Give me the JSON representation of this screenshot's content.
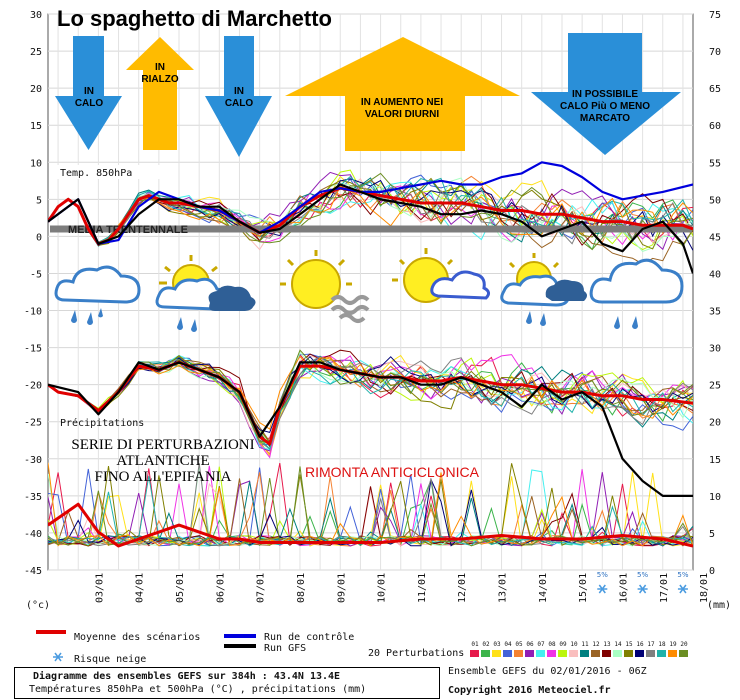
{
  "chart_data": {
    "type": "line",
    "title": "Lo spaghetto di Marchetto",
    "x_ticks": [
      "03/01",
      "04/01",
      "05/01",
      "06/01",
      "07/01",
      "08/01",
      "09/01",
      "10/01",
      "11/01",
      "12/01",
      "13/01",
      "14/01",
      "15/01",
      "16/01",
      "17/01",
      "18/01"
    ],
    "x_range_days": [
      1.75,
      17.75
    ],
    "left_axis": {
      "ticks": [
        30,
        25,
        20,
        15,
        10,
        5,
        0,
        -5,
        -10,
        -15,
        -20,
        -25,
        -30,
        -35,
        -40,
        -45
      ],
      "unit": "(°c)"
    },
    "right_axis": {
      "ticks": [
        75,
        70,
        65,
        60,
        55,
        50,
        45,
        40,
        35,
        30,
        25,
        20,
        15,
        10,
        5,
        0
      ],
      "unit": "(mm)"
    },
    "panels": {
      "t850": {
        "label": "Temp. 850hPa",
        "baseline_label": "MEDIA TRENTENNALE",
        "baseline_value": 0
      },
      "t500": {
        "label": "",
        "ylim": [
          -30,
          -15
        ]
      },
      "precip": {
        "label": "Précipitations"
      }
    },
    "series": [
      {
        "name": "Moyenne des scénarios",
        "color": "#e00000",
        "panel": "t850",
        "x": [
          1.75,
          2,
          2.25,
          2.5,
          2.75,
          3,
          3.25,
          3.5,
          3.75,
          4,
          4.25,
          4.5,
          4.75,
          5,
          5.5,
          6,
          6.5,
          7,
          7.5,
          8,
          8.5,
          9,
          9.5,
          10,
          10.5,
          11,
          11.5,
          12,
          12.5,
          13,
          13.5,
          14,
          14.5,
          15,
          15.5,
          16,
          16.5,
          17,
          17.5,
          17.75
        ],
        "y": [
          2,
          4,
          5,
          4,
          1,
          -1,
          -0.5,
          1,
          3,
          5,
          5.5,
          5,
          4.5,
          4.5,
          4,
          3.5,
          2,
          0.5,
          1.5,
          4,
          5.5,
          6.5,
          6,
          5.5,
          5,
          4.5,
          4.5,
          4.5,
          4,
          3.5,
          3.5,
          3,
          3,
          2.5,
          2,
          2,
          1.5,
          1.5,
          1.5,
          1
        ]
      },
      {
        "name": "Moyenne des scénarios",
        "color": "#e00000",
        "panel": "t500",
        "x": [
          1.75,
          2,
          2.5,
          3,
          3.5,
          4,
          4.5,
          5,
          5.5,
          6,
          6.5,
          7,
          7.25,
          7.5,
          8,
          8.5,
          9,
          9.5,
          10,
          10.5,
          11,
          11.5,
          12,
          12.5,
          13,
          13.5,
          14,
          14.5,
          15,
          15.5,
          16,
          16.5,
          17,
          17.75
        ],
        "y": [
          -20,
          -21,
          -21.5,
          -23.5,
          -21,
          -17.5,
          -18,
          -17,
          -18,
          -19,
          -21,
          -27,
          -28,
          -23,
          -17.5,
          -17.5,
          -18,
          -18.5,
          -19,
          -19,
          -19.5,
          -19.5,
          -19,
          -19.5,
          -20,
          -20,
          -20.5,
          -21,
          -21,
          -21.5,
          -21.5,
          -22,
          -22,
          -22.5
        ]
      },
      {
        "name": "Moyenne des scénarios",
        "color": "#e00000",
        "panel": "precip",
        "x": [
          1.75,
          2,
          2.5,
          3,
          3.5,
          4,
          4.5,
          5,
          5.5,
          6,
          6.5,
          7,
          7.5,
          8,
          9,
          10,
          11,
          12,
          13,
          14,
          15,
          16,
          17,
          17.75
        ],
        "y": [
          3,
          4,
          6,
          2,
          0,
          1,
          2,
          3,
          2,
          1,
          1,
          0.5,
          0.5,
          0.5,
          0.5,
          0.5,
          1,
          1,
          1.5,
          1,
          1,
          1.5,
          1,
          0
        ]
      },
      {
        "name": "Run de contrôle",
        "color": "#0000dd",
        "panel": "t850",
        "x": [
          1.75,
          2.5,
          3,
          3.5,
          4,
          4.5,
          5,
          5.5,
          6,
          6.5,
          7,
          7.5,
          8,
          8.5,
          9,
          9.5,
          10,
          10.5,
          11,
          11.5,
          12,
          12.5,
          13,
          13.5,
          14,
          14.5,
          15,
          15.5,
          16,
          16.5,
          17,
          17.75
        ],
        "y": [
          2,
          5,
          -1,
          -0.5,
          4,
          6,
          5,
          4,
          3.5,
          2,
          0.5,
          2,
          4,
          6,
          6.5,
          6,
          6,
          6.5,
          7,
          7.5,
          7,
          7,
          8,
          8.5,
          10,
          9.5,
          8,
          6,
          5,
          5.5,
          6,
          7
        ]
      },
      {
        "name": "Run GFS",
        "color": "#000000",
        "panel": "t850",
        "x": [
          1.75,
          2.5,
          3,
          3.5,
          4,
          4.5,
          5,
          5.5,
          6,
          6.5,
          7,
          7.5,
          8,
          8.5,
          9,
          9.5,
          10,
          10.5,
          11,
          11.5,
          12,
          12.5,
          13,
          13.5,
          14,
          14.5,
          15,
          15.5,
          16,
          16.5,
          17,
          17.5,
          17.75
        ],
        "y": [
          2,
          5,
          -1,
          0,
          3,
          5,
          5,
          4,
          4,
          2,
          0.5,
          1,
          3,
          5,
          7,
          6,
          5,
          4.5,
          4,
          3,
          3,
          3.5,
          3,
          2,
          0,
          1,
          2,
          -1,
          -2,
          1,
          2,
          -1,
          -5
        ]
      },
      {
        "name": "Run GFS",
        "color": "#000000",
        "panel": "t500",
        "x": [
          1.75,
          2.5,
          3,
          3.5,
          4,
          4.5,
          5,
          5.5,
          6,
          6.5,
          7,
          7.5,
          8,
          8.5,
          9,
          9.5,
          10,
          10.5,
          11,
          11.5,
          12,
          12.5,
          13,
          13.5,
          14,
          14.5,
          15,
          15.5,
          16,
          16.5,
          17,
          17.75
        ],
        "y": [
          -20,
          -21,
          -24,
          -21,
          -17,
          -18,
          -17,
          -18,
          -19,
          -21,
          -27,
          -23,
          -17,
          -17,
          -18,
          -18.5,
          -19,
          -19,
          -20,
          -20,
          -19,
          -20,
          -21,
          -23,
          -20,
          -22,
          -21,
          -23,
          -30,
          -33,
          -35,
          -35
        ]
      }
    ],
    "perturbations": {
      "label": "20 Perturbations",
      "ids": [
        "01",
        "02",
        "03",
        "04",
        "05",
        "06",
        "07",
        "08",
        "09",
        "10",
        "11",
        "12",
        "13",
        "14",
        "15",
        "16",
        "17",
        "18",
        "19",
        "20"
      ]
    },
    "snow_risk": {
      "label": "Risque neige",
      "values": [
        "5%",
        "5%",
        "5%"
      ],
      "days": [
        15.5,
        16.5,
        17.5
      ]
    }
  },
  "annotations": {
    "arrow1": "IN\nCALO",
    "arrow2": "IN\nRIALZO",
    "arrow3": "IN\nCALO",
    "arrow4": "IN AUMENTO NEI\nVALORI DIURNI",
    "arrow5": "IN POSSIBILE\nCALO Più O MENO\nMARCATO",
    "perturb_text": "SERIE DI PERTURBAZIONI\nATLANTICHE\nFINO ALL'EPIFANIA",
    "rimonta": "RIMONTA ANTICICLONICA"
  },
  "colors": {
    "mean": "#e00000",
    "control": "#0000dd",
    "gfs": "#000000",
    "arrow": "#ffbb00",
    "arrow_down": "#2a8fd8",
    "baseline": "#808080"
  },
  "legend": {
    "mean": "Moyenne des scénarios",
    "control": "Run de contrôle",
    "gfs": "Run GFS",
    "snow": "Risque neige",
    "perturb_label": "20 Perturbations"
  },
  "footer": {
    "line1": "Diagramme des ensembles GEFS sur 384h : 43.4N 13.4E",
    "line2": "Températures 850hPa et 500hPa (°C) , précipitations (mm)",
    "run": "Ensemble GEFS du 02/01/2016 - 06Z",
    "copyright": "Copyright 2016 Meteociel.fr"
  }
}
